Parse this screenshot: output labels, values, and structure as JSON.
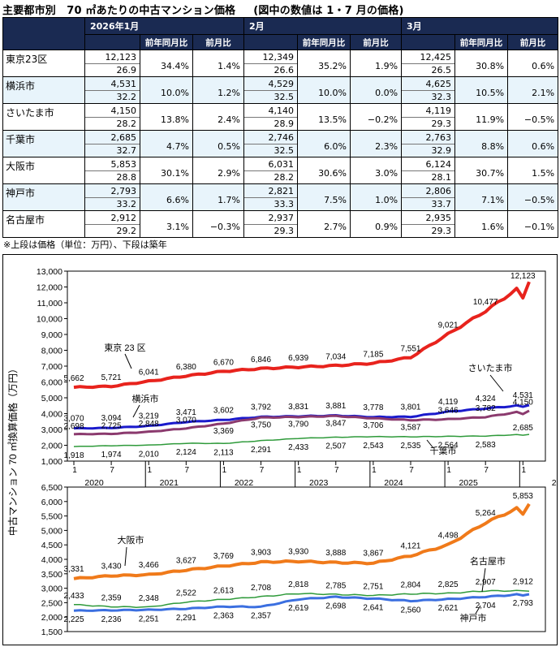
{
  "title": {
    "main": "主要都市別　70 ㎡あたりの中古マンション価格",
    "note": "(図中の数値は 1・7 月の価格)"
  },
  "table": {
    "months": [
      "2026年1月",
      "2月",
      "3月"
    ],
    "sub_headers": [
      "前年同月比",
      "前月比"
    ],
    "rows": [
      {
        "city": "東京23区",
        "m": [
          {
            "price": "12,123",
            "age": "26.9",
            "yoy": "34.4%",
            "mom": "1.4%"
          },
          {
            "price": "12,349",
            "age": "26.6",
            "yoy": "35.2%",
            "mom": "1.9%"
          },
          {
            "price": "12,425",
            "age": "26.5",
            "yoy": "30.8%",
            "mom": "0.6%"
          }
        ]
      },
      {
        "city": "横浜市",
        "m": [
          {
            "price": "4,531",
            "age": "32.2",
            "yoy": "10.0%",
            "mom": "1.2%"
          },
          {
            "price": "4,529",
            "age": "32.5",
            "yoy": "10.0%",
            "mom": "0.0%"
          },
          {
            "price": "4,625",
            "age": "32.3",
            "yoy": "10.5%",
            "mom": "2.1%"
          }
        ]
      },
      {
        "city": "さいたま市",
        "m": [
          {
            "price": "4,150",
            "age": "28.2",
            "yoy": "13.8%",
            "mom": "2.4%"
          },
          {
            "price": "4,140",
            "age": "28.9",
            "yoy": "13.5%",
            "mom": "−0.2%"
          },
          {
            "price": "4,119",
            "age": "29.3",
            "yoy": "11.9%",
            "mom": "−0.5%"
          }
        ]
      },
      {
        "city": "千葉市",
        "m": [
          {
            "price": "2,685",
            "age": "32.7",
            "yoy": "4.7%",
            "mom": "0.5%"
          },
          {
            "price": "2,746",
            "age": "32.5",
            "yoy": "6.0%",
            "mom": "2.3%"
          },
          {
            "price": "2,763",
            "age": "32.9",
            "yoy": "8.8%",
            "mom": "0.6%"
          }
        ]
      },
      {
        "city": "大阪市",
        "m": [
          {
            "price": "5,853",
            "age": "28.8",
            "yoy": "30.1%",
            "mom": "2.9%"
          },
          {
            "price": "6,031",
            "age": "28.2",
            "yoy": "30.6%",
            "mom": "3.0%"
          },
          {
            "price": "6,124",
            "age": "28.1",
            "yoy": "30.7%",
            "mom": "1.5%"
          }
        ]
      },
      {
        "city": "神戸市",
        "m": [
          {
            "price": "2,793",
            "age": "33.2",
            "yoy": "6.6%",
            "mom": "1.7%"
          },
          {
            "price": "2,821",
            "age": "33.3",
            "yoy": "7.5%",
            "mom": "1.0%"
          },
          {
            "price": "2,806",
            "age": "33.7",
            "yoy": "7.1%",
            "mom": "−0.5%"
          }
        ]
      },
      {
        "city": "名古屋市",
        "m": [
          {
            "price": "2,912",
            "age": "29.2",
            "yoy": "3.1%",
            "mom": "−0.3%"
          },
          {
            "price": "2,937",
            "age": "29.3",
            "yoy": "2.7%",
            "mom": "0.9%"
          },
          {
            "price": "2,935",
            "age": "29.3",
            "yoy": "1.6%",
            "mom": "−0.1%"
          }
        ]
      }
    ],
    "footnote": "※上段は価格（単位：万円）、下段は築年"
  },
  "chart_data": {
    "type": "line",
    "ylabel": "中古マンション 70 ㎡換算価格（万円）",
    "x_ticks": [
      "1",
      "7",
      "1",
      "7",
      "1",
      "7",
      "1",
      "7",
      "1",
      "7",
      "1",
      "7",
      "1",
      "7"
    ],
    "year_labels": [
      "2020",
      "2021",
      "2022",
      "2023",
      "2024",
      "2025",
      "2026"
    ],
    "panels": [
      {
        "ylim": [
          1000,
          13000
        ],
        "yticks": [
          "1,000",
          "2,000",
          "3,000",
          "4,000",
          "5,000",
          "6,000",
          "7,000",
          "8,000",
          "9,000",
          "10,000",
          "11,000",
          "12,000",
          "13,000"
        ],
        "series": [
          {
            "name": "東京 23 区",
            "color": "#e8231d",
            "values": [
              5662,
              5721,
              6041,
              6380,
              6670,
              6846,
              6939,
              7034,
              7185,
              7551,
              9021,
              10477,
              12123
            ],
            "labels": [
              "5,662",
              "5,721",
              "6,041",
              "6,380",
              "6,670",
              "6,846",
              "6,939",
              "7,034",
              "7,185",
              "7,551",
              "9,021",
              "10,477",
              "12,123"
            ]
          },
          {
            "name": "横浜市",
            "color": "#1a1acc",
            "values": [
              3070,
              3094,
              3219,
              3471,
              3602,
              3792,
              3831,
              3881,
              3778,
              3801,
              4119,
              4324,
              4531
            ],
            "labels": [
              "3,070",
              "3,094",
              "3,219",
              "3,471",
              "3,602",
              "3,792",
              "3,831",
              "3,881",
              "3,778",
              "3,801",
              "4,119",
              "4,324",
              "4,531"
            ]
          },
          {
            "name": "さいたま市",
            "color": "#8b3a6e",
            "values": [
              2698,
              2725,
              2848,
              3070,
              3369,
              3750,
              3790,
              3847,
              3706,
              3587,
              3646,
              3782,
              4150
            ],
            "labels": [
              "2,698",
              "2,725",
              "2,848",
              "3,070",
              "3,369",
              "3,750",
              "3,790",
              "3,847",
              "3,706",
              "3,587",
              "3,646",
              "3,782",
              "4,150"
            ]
          },
          {
            "name": "千葉市",
            "color": "#2e9a3a",
            "values": [
              1918,
              1974,
              2010,
              2124,
              2113,
              2291,
              2433,
              2507,
              2543,
              2535,
              2564,
              2583,
              2685
            ],
            "labels": [
              "1,918",
              "1,974",
              "2,010",
              "2,124",
              "2,113",
              "2,291",
              "2,433",
              "2,507",
              "2,543",
              "2,535",
              "2,564",
              "2,583",
              "2,685"
            ]
          }
        ]
      },
      {
        "ylim": [
          1500,
          6500
        ],
        "yticks": [
          "1,500",
          "2,000",
          "2,500",
          "3,000",
          "3,500",
          "4,000",
          "4,500",
          "5,000",
          "5,500",
          "6,000",
          "6,500"
        ],
        "series": [
          {
            "name": "大阪市",
            "color": "#f07a1a",
            "values": [
              3331,
              3430,
              3466,
              3627,
              3769,
              3903,
              3930,
              3888,
              3867,
              4121,
              4498,
              5264,
              5853
            ],
            "labels": [
              "3,331",
              "3,430",
              "3,466",
              "3,627",
              "3,769",
              "3,903",
              "3,930",
              "3,888",
              "3,867",
              "4,121",
              "4,498",
              "5,264",
              "5,853"
            ]
          },
          {
            "name": "名古屋市",
            "color": "#2e9a3a",
            "values": [
              2433,
              2359,
              2348,
              2522,
              2613,
              2708,
              2818,
              2785,
              2751,
              2804,
              2825,
              2907,
              2912
            ],
            "labels": [
              "2,433",
              "2,359",
              "2,348",
              "2,522",
              "2,613",
              "2,708",
              "2,818",
              "2,785",
              "2,751",
              "2,804",
              "2,825",
              "2,907",
              "2,912"
            ]
          },
          {
            "name": "神戸市",
            "color": "#3b6fe0",
            "values": [
              2225,
              2236,
              2251,
              2291,
              2363,
              2357,
              2619,
              2698,
              2641,
              2560,
              2621,
              2704,
              2793
            ],
            "labels": [
              "2,225",
              "2,236",
              "2,251",
              "2,291",
              "2,363",
              "2,357",
              "2,619",
              "2,698",
              "2,641",
              "2,560",
              "2,621",
              "2,704",
              "2,793"
            ]
          }
        ]
      }
    ]
  }
}
